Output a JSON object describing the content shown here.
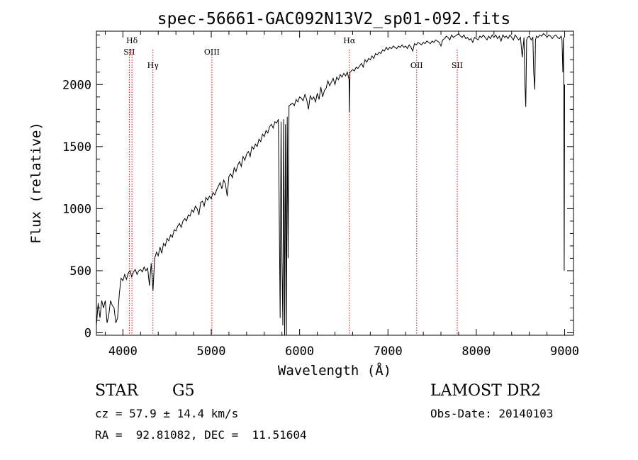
{
  "chart_data": {
    "type": "line",
    "title": "spec-56661-GAC092N13V2_sp01-092.fits",
    "xlabel": "Wavelength (Å)",
    "ylabel": "Flux (relative)",
    "xlim": [
      3700,
      9100
    ],
    "ylim": [
      -20,
      2430
    ],
    "x_ticks": [
      4000,
      5000,
      6000,
      7000,
      8000,
      9000
    ],
    "y_ticks": [
      0,
      500,
      1000,
      1500,
      2000
    ],
    "grid": false,
    "line_color": "#000000",
    "marker_color": "#cc0000",
    "spectral_lines": [
      {
        "label": "Hδ",
        "wavelength": 4102,
        "row": 0
      },
      {
        "label": "SII",
        "wavelength": 4072,
        "row": 1
      },
      {
        "label": "Hγ",
        "wavelength": 4340,
        "row": 2
      },
      {
        "label": "OIII",
        "wavelength": 5007,
        "row": 1
      },
      {
        "label": "Hα",
        "wavelength": 6563,
        "row": 0
      },
      {
        "label": "OII",
        "wavelength": 7325,
        "row": 2
      },
      {
        "label": "SII",
        "wavelength": 7784,
        "row": 2
      }
    ],
    "spectrum": [
      [
        3700,
        60
      ],
      [
        3720,
        240
      ],
      [
        3740,
        120
      ],
      [
        3760,
        260
      ],
      [
        3780,
        200
      ],
      [
        3800,
        260
      ],
      [
        3820,
        80
      ],
      [
        3840,
        140
      ],
      [
        3860,
        260
      ],
      [
        3880,
        220
      ],
      [
        3900,
        200
      ],
      [
        3920,
        80
      ],
      [
        3940,
        120
      ],
      [
        3960,
        320
      ],
      [
        3980,
        440
      ],
      [
        4000,
        420
      ],
      [
        4020,
        470
      ],
      [
        4040,
        430
      ],
      [
        4060,
        480
      ],
      [
        4080,
        500
      ],
      [
        4100,
        450
      ],
      [
        4120,
        490
      ],
      [
        4140,
        510
      ],
      [
        4160,
        470
      ],
      [
        4180,
        500
      ],
      [
        4200,
        510
      ],
      [
        4220,
        490
      ],
      [
        4240,
        530
      ],
      [
        4260,
        500
      ],
      [
        4280,
        520
      ],
      [
        4300,
        380
      ],
      [
        4320,
        560
      ],
      [
        4340,
        340
      ],
      [
        4360,
        600
      ],
      [
        4380,
        650
      ],
      [
        4400,
        620
      ],
      [
        4420,
        690
      ],
      [
        4440,
        640
      ],
      [
        4460,
        720
      ],
      [
        4480,
        700
      ],
      [
        4500,
        760
      ],
      [
        4520,
        740
      ],
      [
        4540,
        790
      ],
      [
        4560,
        770
      ],
      [
        4580,
        830
      ],
      [
        4600,
        820
      ],
      [
        4620,
        860
      ],
      [
        4640,
        880
      ],
      [
        4660,
        850
      ],
      [
        4680,
        900
      ],
      [
        4700,
        920
      ],
      [
        4720,
        900
      ],
      [
        4740,
        950
      ],
      [
        4760,
        940
      ],
      [
        4780,
        990
      ],
      [
        4800,
        970
      ],
      [
        4820,
        1020
      ],
      [
        4840,
        1000
      ],
      [
        4860,
        950
      ],
      [
        4880,
        1050
      ],
      [
        4900,
        1060
      ],
      [
        4920,
        1020
      ],
      [
        4940,
        1090
      ],
      [
        4960,
        1070
      ],
      [
        4980,
        1100
      ],
      [
        5000,
        1080
      ],
      [
        5020,
        1130
      ],
      [
        5040,
        1110
      ],
      [
        5060,
        1150
      ],
      [
        5080,
        1180
      ],
      [
        5100,
        1210
      ],
      [
        5120,
        1160
      ],
      [
        5140,
        1230
      ],
      [
        5160,
        1200
      ],
      [
        5180,
        1100
      ],
      [
        5200,
        1260
      ],
      [
        5220,
        1280
      ],
      [
        5240,
        1250
      ],
      [
        5260,
        1330
      ],
      [
        5280,
        1300
      ],
      [
        5300,
        1350
      ],
      [
        5320,
        1380
      ],
      [
        5340,
        1340
      ],
      [
        5360,
        1420
      ],
      [
        5380,
        1390
      ],
      [
        5400,
        1440
      ],
      [
        5420,
        1460
      ],
      [
        5440,
        1420
      ],
      [
        5460,
        1500
      ],
      [
        5480,
        1480
      ],
      [
        5500,
        1520
      ],
      [
        5520,
        1500
      ],
      [
        5540,
        1560
      ],
      [
        5560,
        1540
      ],
      [
        5580,
        1600
      ],
      [
        5600,
        1580
      ],
      [
        5620,
        1630
      ],
      [
        5640,
        1610
      ],
      [
        5660,
        1660
      ],
      [
        5680,
        1680
      ],
      [
        5700,
        1650
      ],
      [
        5720,
        1700
      ],
      [
        5740,
        1690
      ],
      [
        5760,
        1720
      ],
      [
        5770,
        900
      ],
      [
        5780,
        120
      ],
      [
        5790,
        1700
      ],
      [
        5800,
        600
      ],
      [
        5810,
        60
      ],
      [
        5820,
        1720
      ],
      [
        5830,
        -20
      ],
      [
        5840,
        1680
      ],
      [
        5850,
        -20
      ],
      [
        5860,
        1740
      ],
      [
        5870,
        600
      ],
      [
        5880,
        1830
      ],
      [
        5900,
        1840
      ],
      [
        5920,
        1850
      ],
      [
        5940,
        1830
      ],
      [
        5960,
        1880
      ],
      [
        5980,
        1860
      ],
      [
        6000,
        1900
      ],
      [
        6020,
        1890
      ],
      [
        6040,
        1870
      ],
      [
        6060,
        1920
      ],
      [
        6080,
        1880
      ],
      [
        6100,
        1800
      ],
      [
        6120,
        1910
      ],
      [
        6140,
        1880
      ],
      [
        6160,
        1900
      ],
      [
        6180,
        1860
      ],
      [
        6200,
        1930
      ],
      [
        6220,
        1880
      ],
      [
        6240,
        1980
      ],
      [
        6260,
        1900
      ],
      [
        6280,
        1950
      ],
      [
        6300,
        1970
      ],
      [
        6320,
        2030
      ],
      [
        6340,
        1990
      ],
      [
        6360,
        2020
      ],
      [
        6380,
        2050
      ],
      [
        6400,
        2000
      ],
      [
        6420,
        2060
      ],
      [
        6440,
        2040
      ],
      [
        6460,
        2080
      ],
      [
        6480,
        2060
      ],
      [
        6500,
        2090
      ],
      [
        6520,
        2070
      ],
      [
        6540,
        2100
      ],
      [
        6560,
        2040
      ],
      [
        6563,
        1780
      ],
      [
        6570,
        2100
      ],
      [
        6600,
        2120
      ],
      [
        6620,
        2110
      ],
      [
        6640,
        2140
      ],
      [
        6660,
        2130
      ],
      [
        6680,
        2150
      ],
      [
        6700,
        2170
      ],
      [
        6720,
        2140
      ],
      [
        6740,
        2200
      ],
      [
        6760,
        2180
      ],
      [
        6780,
        2210
      ],
      [
        6800,
        2200
      ],
      [
        6820,
        2230
      ],
      [
        6840,
        2210
      ],
      [
        6860,
        2250
      ],
      [
        6880,
        2240
      ],
      [
        6900,
        2260
      ],
      [
        6920,
        2250
      ],
      [
        6940,
        2280
      ],
      [
        6960,
        2270
      ],
      [
        6980,
        2300
      ],
      [
        7000,
        2280
      ],
      [
        7020,
        2300
      ],
      [
        7040,
        2290
      ],
      [
        7060,
        2310
      ],
      [
        7080,
        2300
      ],
      [
        7100,
        2290
      ],
      [
        7120,
        2310
      ],
      [
        7140,
        2300
      ],
      [
        7160,
        2320
      ],
      [
        7180,
        2300
      ],
      [
        7200,
        2310
      ],
      [
        7220,
        2290
      ],
      [
        7240,
        2320
      ],
      [
        7260,
        2300
      ],
      [
        7280,
        2270
      ],
      [
        7300,
        2330
      ],
      [
        7320,
        2320
      ],
      [
        7340,
        2340
      ],
      [
        7360,
        2330
      ],
      [
        7380,
        2320
      ],
      [
        7400,
        2340
      ],
      [
        7420,
        2330
      ],
      [
        7440,
        2350
      ],
      [
        7460,
        2340
      ],
      [
        7480,
        2330
      ],
      [
        7500,
        2350
      ],
      [
        7520,
        2340
      ],
      [
        7540,
        2360
      ],
      [
        7560,
        2350
      ],
      [
        7580,
        2340
      ],
      [
        7600,
        2310
      ],
      [
        7620,
        2360
      ],
      [
        7640,
        2370
      ],
      [
        7660,
        2390
      ],
      [
        7680,
        2380
      ],
      [
        7700,
        2360
      ],
      [
        7720,
        2400
      ],
      [
        7740,
        2380
      ],
      [
        7760,
        2390
      ],
      [
        7780,
        2400
      ],
      [
        7800,
        2410
      ],
      [
        7820,
        2390
      ],
      [
        7840,
        2380
      ],
      [
        7860,
        2400
      ],
      [
        7880,
        2370
      ],
      [
        7900,
        2380
      ],
      [
        7920,
        2360
      ],
      [
        7940,
        2370
      ],
      [
        7960,
        2340
      ],
      [
        7980,
        2380
      ],
      [
        8000,
        2370
      ],
      [
        8020,
        2360
      ],
      [
        8040,
        2390
      ],
      [
        8060,
        2380
      ],
      [
        8080,
        2400
      ],
      [
        8100,
        2380
      ],
      [
        8120,
        2360
      ],
      [
        8140,
        2390
      ],
      [
        8160,
        2370
      ],
      [
        8180,
        2400
      ],
      [
        8200,
        2380
      ],
      [
        8220,
        2400
      ],
      [
        8240,
        2370
      ],
      [
        8260,
        2390
      ],
      [
        8280,
        2350
      ],
      [
        8300,
        2400
      ],
      [
        8320,
        2380
      ],
      [
        8340,
        2390
      ],
      [
        8360,
        2370
      ],
      [
        8380,
        2400
      ],
      [
        8400,
        2380
      ],
      [
        8420,
        2360
      ],
      [
        8440,
        2400
      ],
      [
        8460,
        2380
      ],
      [
        8480,
        2360
      ],
      [
        8500,
        2380
      ],
      [
        8520,
        2220
      ],
      [
        8540,
        2380
      ],
      [
        8550,
        2000
      ],
      [
        8560,
        1820
      ],
      [
        8570,
        2360
      ],
      [
        8580,
        2380
      ],
      [
        8600,
        2390
      ],
      [
        8620,
        2360
      ],
      [
        8640,
        2380
      ],
      [
        8650,
        2100
      ],
      [
        8662,
        1960
      ],
      [
        8670,
        2360
      ],
      [
        8680,
        2390
      ],
      [
        8700,
        2380
      ],
      [
        8720,
        2400
      ],
      [
        8740,
        2390
      ],
      [
        8760,
        2410
      ],
      [
        8780,
        2400
      ],
      [
        8800,
        2380
      ],
      [
        8820,
        2400
      ],
      [
        8840,
        2390
      ],
      [
        8860,
        2370
      ],
      [
        8880,
        2390
      ],
      [
        8900,
        2400
      ],
      [
        8920,
        2380
      ],
      [
        8940,
        2370
      ],
      [
        8960,
        2390
      ],
      [
        8970,
        2360
      ],
      [
        8980,
        2100
      ],
      [
        8985,
        2380
      ],
      [
        8990,
        1950
      ],
      [
        8995,
        500
      ],
      [
        9000,
        2000
      ]
    ]
  },
  "info": {
    "object_class": "STAR",
    "subclass": "G5",
    "cz_line": "cz = 57.9 ± 14.4 km/s",
    "coords_line": "RA =  92.81082, DEC =  11.51604",
    "survey": "LAMOST DR2",
    "obs_date_line": "Obs-Date: 20140103"
  }
}
